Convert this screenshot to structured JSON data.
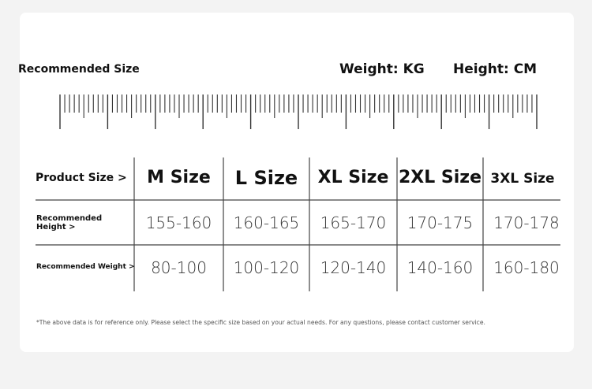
{
  "title": "Recommended Size",
  "units": {
    "weight": "Weight: KG",
    "height": "Height: CM"
  },
  "table": {
    "header_label": "Product Size >",
    "sizes": [
      "M Size",
      "L Size",
      "XL Size",
      "2XL Size",
      "3XL Size"
    ],
    "rows": [
      {
        "label": "Recommended Height >",
        "values": [
          "155-160",
          "160-165",
          "165-170",
          "170-175",
          "170-178"
        ]
      },
      {
        "label": "Recommended Weight >",
        "values": [
          "80-100",
          "100-120",
          "120-140",
          "140-160",
          "160-180"
        ]
      }
    ]
  },
  "footnote": "*The above data is for reference only. Please select the specific size based on your actual needs. For any questions, please contact customer service."
}
